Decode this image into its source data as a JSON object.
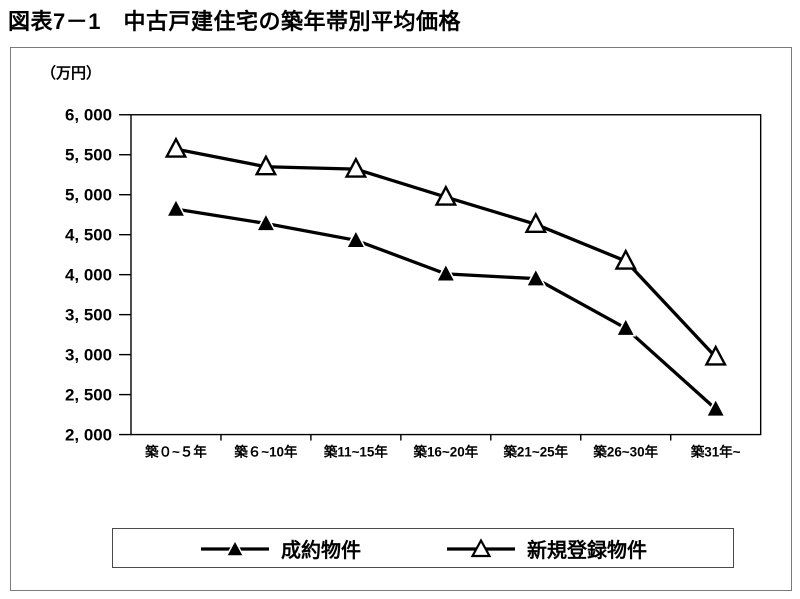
{
  "page": {
    "title": "図表7－1　中古戸建住宅の築年帯別平均価格"
  },
  "chart_data": {
    "type": "line",
    "title": "図表7－1　中古戸建住宅の築年帯別平均価格",
    "unit_label": "（万円）",
    "categories": [
      "築０~５年",
      "築６~10年",
      "築11~15年",
      "築16~20年",
      "築21~25年",
      "築26~30年",
      "築31年~"
    ],
    "series": [
      {
        "name": "成約物件",
        "marker": "filled-triangle",
        "color": "#000000",
        "values": [
          4820,
          4640,
          4430,
          4010,
          3950,
          3330,
          2320
        ]
      },
      {
        "name": "新規登録物件",
        "marker": "open-triangle",
        "color": "#000000",
        "values": [
          5570,
          5350,
          5320,
          4970,
          4630,
          4170,
          2970
        ]
      }
    ],
    "ylim": [
      2000,
      6000
    ],
    "ytick_step": 500,
    "ytick_labels": [
      "2, 000",
      "2, 500",
      "3, 000",
      "3, 500",
      "4, 000",
      "4, 500",
      "5, 000",
      "5, 500",
      "6, 000"
    ],
    "xlabel": "",
    "ylabel": "（万円）",
    "grid": false,
    "legend_position": "bottom",
    "colors": {
      "line": "#000000",
      "background": "#ffffff",
      "frame": "#7a7a7a"
    }
  },
  "legend": {
    "items": [
      {
        "label": "成約物件"
      },
      {
        "label": "新規登録物件"
      }
    ]
  }
}
